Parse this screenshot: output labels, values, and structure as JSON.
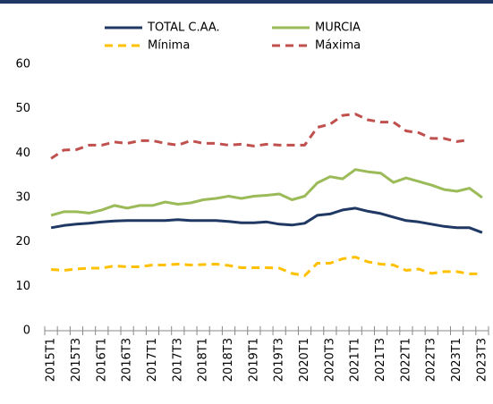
{
  "chart_data": {
    "type": "line",
    "categories": [
      "2015T1",
      null,
      "2015T3",
      null,
      "2016T1",
      null,
      "2016T3",
      null,
      "2017T1",
      null,
      "2017T3",
      null,
      "2018T1",
      null,
      "2018T3",
      null,
      "2019T1",
      null,
      "2019T3",
      null,
      "2020T1",
      null,
      "2020T3",
      null,
      "2021T1",
      null,
      "2021T3",
      null,
      "2022T1",
      null,
      "2022T3",
      null,
      "2023T1",
      null,
      "2023T3"
    ],
    "series": [
      {
        "name": "TOTAL C.AA.",
        "color": "#1f3864",
        "dashed": false,
        "values": [
          23.2,
          23.7,
          24.0,
          24.2,
          24.5,
          24.7,
          24.8,
          24.8,
          24.8,
          24.8,
          25.0,
          24.8,
          24.8,
          24.8,
          24.6,
          24.3,
          24.3,
          24.5,
          24.0,
          23.8,
          24.2,
          26.0,
          26.3,
          27.2,
          27.6,
          26.9,
          26.4,
          25.6,
          24.8,
          24.5,
          24.0,
          23.5,
          23.2,
          23.2,
          22.1
        ]
      },
      {
        "name": "MURCIA",
        "color": "#9bbb59",
        "dashed": false,
        "values": [
          26.0,
          26.8,
          26.8,
          26.5,
          27.2,
          28.2,
          27.6,
          28.2,
          28.2,
          29.0,
          28.5,
          28.8,
          29.5,
          29.8,
          30.3,
          29.8,
          30.3,
          30.5,
          30.8,
          29.5,
          30.3,
          33.3,
          34.7,
          34.2,
          36.3,
          35.8,
          35.5,
          33.4,
          34.4,
          33.6,
          32.8,
          31.8,
          31.4,
          32.1,
          30.0
        ]
      },
      {
        "name": "Mínima",
        "color": "#ffc000",
        "dashed": true,
        "values": [
          13.8,
          13.6,
          13.9,
          14.1,
          14.1,
          14.6,
          14.4,
          14.4,
          14.8,
          14.8,
          15.0,
          14.8,
          14.9,
          15.0,
          14.7,
          14.2,
          14.2,
          14.2,
          14.1,
          12.9,
          12.4,
          15.2,
          15.2,
          16.2,
          16.6,
          15.5,
          15.0,
          14.8,
          13.6,
          13.9,
          12.9,
          13.3,
          13.3,
          12.8,
          12.8
        ]
      },
      {
        "name": "Máxima",
        "color": "#c0504d",
        "dashed": true,
        "values": [
          38.8,
          40.7,
          40.8,
          41.8,
          41.8,
          42.5,
          42.2,
          42.8,
          42.8,
          42.2,
          41.8,
          42.8,
          42.2,
          42.2,
          41.8,
          42.0,
          41.6,
          42.0,
          41.8,
          41.8,
          41.8,
          45.8,
          46.5,
          48.5,
          48.8,
          47.5,
          47.0,
          47.0,
          45.0,
          44.6,
          43.3,
          43.3,
          42.6,
          43.0,
          null
        ]
      }
    ],
    "ylim": [
      0,
      60
    ],
    "yticks": [
      0,
      10,
      20,
      30,
      40,
      50,
      60
    ],
    "grid": false
  }
}
